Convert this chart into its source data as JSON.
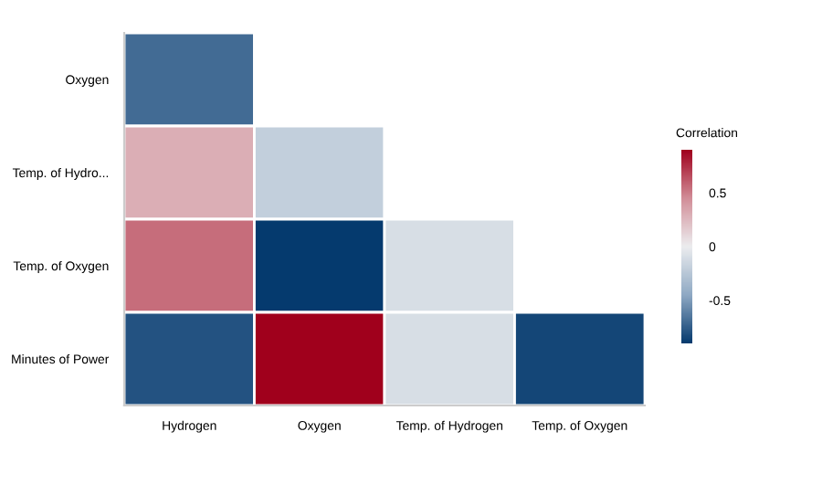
{
  "chart_data": {
    "type": "heatmap",
    "clabel": "Correlation",
    "categories": [
      "Hydrogen",
      "Oxygen",
      "Temp. of Hydrogen",
      "Temp. of Oxygen"
    ],
    "y_categories": [
      "Oxygen",
      "Temp. of Hydro...",
      "Temp. of Oxygen",
      "Minutes of Power"
    ],
    "cells": [
      [
        -0.7,
        null,
        null,
        null
      ],
      [
        0.3,
        -0.2,
        null,
        null
      ],
      [
        0.55,
        -0.9,
        -0.1,
        null
      ],
      [
        -0.8,
        0.9,
        -0.1,
        -0.85
      ]
    ],
    "clim": [
      -0.9,
      0.9
    ],
    "cticks": [
      -0.5,
      0,
      0.5
    ],
    "grid": false
  }
}
